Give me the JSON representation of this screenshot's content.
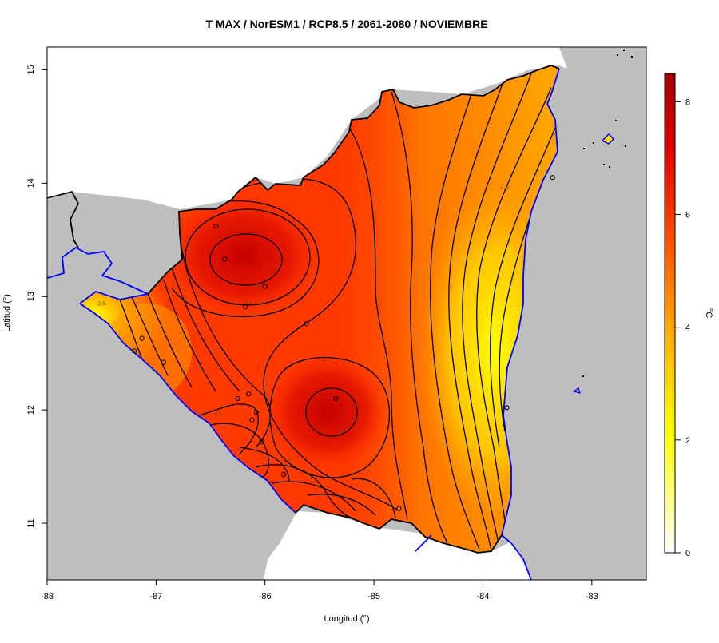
{
  "title": "T MAX / NorESM1 / RCP8.5 / 2061-2080 / NOVIEMBRE",
  "xlabel": "Longitud (°)",
  "ylabel": "Latitud (°)",
  "colorbar_unit": "°C",
  "colorbar_ticks": [
    "0",
    "2",
    "4",
    "6",
    "8"
  ],
  "x_ticks": [
    "-88",
    "-87",
    "-86",
    "-85",
    "-84",
    "-83"
  ],
  "y_ticks": [
    "11",
    "12",
    "13",
    "14",
    "15"
  ],
  "contour_labels": [
    "6.5",
    "6.5",
    "6",
    "5.5",
    "4.5",
    "4.5",
    "5.5",
    "2.5"
  ],
  "colors": {
    "sea": "#bebebe",
    "coast": "#0000ff",
    "border": "#000000",
    "map_low": "#ffff00",
    "map_mid": "#ff8c00",
    "map_high": "#ff2a00",
    "map_max": "#c80000"
  },
  "chart_data": {
    "type": "heatmap",
    "variable": "T MAX",
    "xlim": [
      -88,
      -82.5
    ],
    "ylim": [
      10.5,
      15.2
    ],
    "color_scale": {
      "min": 0,
      "max": 8.5
    },
    "hot_spots": [
      {
        "lon": -86.2,
        "lat": 13.3,
        "value": 7.2
      },
      {
        "lon": -85.3,
        "lat": 12.0,
        "value": 7.1
      }
    ],
    "stations": [
      [
        -86.45,
        13.62
      ],
      [
        -86.37,
        13.33
      ],
      [
        -86.18,
        12.91
      ],
      [
        -86.0,
        13.09
      ],
      [
        -85.62,
        12.76
      ],
      [
        -87.13,
        12.63
      ],
      [
        -86.93,
        12.42
      ],
      [
        -87.2,
        12.52
      ],
      [
        -86.25,
        12.1
      ],
      [
        -86.15,
        12.14
      ],
      [
        -86.08,
        11.98
      ],
      [
        -86.12,
        11.91
      ],
      [
        -86.03,
        11.72
      ],
      [
        -85.35,
        12.1
      ],
      [
        -85.83,
        11.43
      ],
      [
        -84.77,
        11.13
      ],
      [
        -83.36,
        14.05
      ],
      [
        -83.78,
        12.02
      ]
    ]
  }
}
